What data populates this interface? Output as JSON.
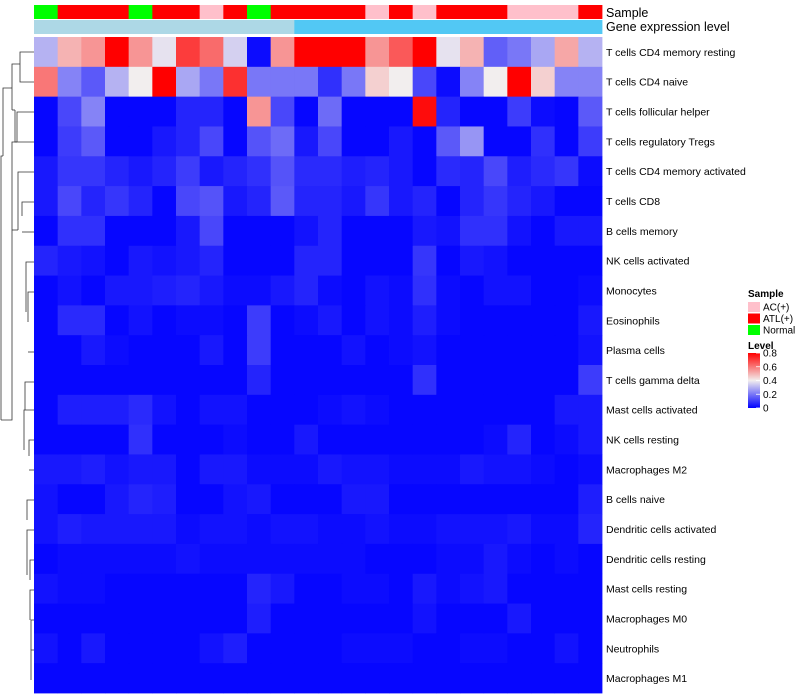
{
  "chart_data": {
    "type": "heatmap",
    "title": "",
    "annotation_tracks": [
      {
        "name": "Sample",
        "label": "Sample"
      },
      {
        "name": "Gene expression level",
        "label": "Gene expression level"
      }
    ],
    "sample_types": [
      "Normal",
      "ATL(+)",
      "ATL(+)",
      "ATL(+)",
      "Normal",
      "ATL(+)",
      "ATL(+)",
      "AC(+)",
      "ATL(+)",
      "Normal",
      "ATL(+)",
      "ATL(+)",
      "ATL(+)",
      "ATL(+)",
      "AC(+)",
      "ATL(+)",
      "AC(+)",
      "ATL(+)",
      "ATL(+)",
      "ATL(+)",
      "AC(+)",
      "AC(+)",
      "AC(+)",
      "ATL(+)"
    ],
    "expression_level": [
      "low",
      "low",
      "low",
      "low",
      "low",
      "low",
      "low",
      "low",
      "low",
      "low",
      "low",
      "high",
      "high",
      "high",
      "high",
      "high",
      "high",
      "high",
      "high",
      "high",
      "high",
      "high",
      "high",
      "high"
    ],
    "rows": [
      "T cells CD4 memory resting",
      "T cells CD4 naive",
      "T cells follicular helper",
      "T cells regulatory  Tregs",
      "T cells CD4 memory activated",
      "T cells CD8",
      "B cells memory",
      "NK cells activated",
      "Monocytes",
      "Eosinophils",
      "Plasma cells",
      "T cells gamma delta",
      "Mast cells activated",
      "NK cells resting",
      "Macrophages M2",
      "B cells naive",
      "Dendritic cells activated",
      "Dendritic cells resting",
      "Mast cells resting",
      "Macrophages M0",
      "Neutrophils",
      "Macrophages M1"
    ],
    "values": [
      [
        0.3,
        0.5,
        0.55,
        0.8,
        0.55,
        0.38,
        0.7,
        0.62,
        0.35,
        0.02,
        0.55,
        0.8,
        0.8,
        0.8,
        0.55,
        0.65,
        0.8,
        0.38,
        0.5,
        0.16,
        0.2,
        0.28,
        0.52,
        0.3
      ],
      [
        0.6,
        0.22,
        0.15,
        0.3,
        0.4,
        0.8,
        0.28,
        0.2,
        0.72,
        0.2,
        0.2,
        0.2,
        0.08,
        0.2,
        0.45,
        0.4,
        0.12,
        0.02,
        0.22,
        0.4,
        0.8,
        0.45,
        0.22,
        0.22
      ],
      [
        0.01,
        0.12,
        0.22,
        0.01,
        0.01,
        0.01,
        0.06,
        0.06,
        0.01,
        0.55,
        0.12,
        0.01,
        0.18,
        0.01,
        0.01,
        0.01,
        0.78,
        0.06,
        0.01,
        0.01,
        0.1,
        0.02,
        0.01,
        0.15
      ],
      [
        0.01,
        0.1,
        0.15,
        0.01,
        0.01,
        0.04,
        0.06,
        0.12,
        0.01,
        0.14,
        0.18,
        0.04,
        0.12,
        0.01,
        0.01,
        0.04,
        0.01,
        0.15,
        0.25,
        0.01,
        0.01,
        0.08,
        0.01,
        0.1
      ],
      [
        0.04,
        0.09,
        0.09,
        0.06,
        0.04,
        0.06,
        0.1,
        0.04,
        0.06,
        0.08,
        0.14,
        0.07,
        0.07,
        0.05,
        0.06,
        0.04,
        0.01,
        0.07,
        0.06,
        0.12,
        0.05,
        0.07,
        0.09,
        0.02
      ],
      [
        0.04,
        0.12,
        0.06,
        0.09,
        0.06,
        0.01,
        0.12,
        0.14,
        0.04,
        0.06,
        0.15,
        0.06,
        0.06,
        0.04,
        0.09,
        0.04,
        0.06,
        0.01,
        0.06,
        0.09,
        0.06,
        0.04,
        0.01,
        0.01
      ],
      [
        0.01,
        0.08,
        0.08,
        0.01,
        0.01,
        0.01,
        0.04,
        0.12,
        0.01,
        0.01,
        0.01,
        0.03,
        0.06,
        0.01,
        0.01,
        0.01,
        0.04,
        0.03,
        0.08,
        0.08,
        0.03,
        0.01,
        0.04,
        0.04
      ],
      [
        0.06,
        0.04,
        0.03,
        0.01,
        0.04,
        0.03,
        0.04,
        0.06,
        0.01,
        0.01,
        0.01,
        0.06,
        0.06,
        0.01,
        0.01,
        0.01,
        0.09,
        0.01,
        0.04,
        0.03,
        0.01,
        0.01,
        0.01,
        0.01
      ],
      [
        0.01,
        0.03,
        0.01,
        0.04,
        0.04,
        0.05,
        0.06,
        0.04,
        0.02,
        0.02,
        0.04,
        0.06,
        0.02,
        0.01,
        0.03,
        0.02,
        0.08,
        0.02,
        0.01,
        0.03,
        0.03,
        0.01,
        0.01,
        0.02
      ],
      [
        0.01,
        0.07,
        0.07,
        0.01,
        0.03,
        0.01,
        0.02,
        0.02,
        0.01,
        0.1,
        0.01,
        0.02,
        0.04,
        0.01,
        0.03,
        0.02,
        0.05,
        0.02,
        0.01,
        0.01,
        0.01,
        0.01,
        0.01,
        0.04
      ],
      [
        0.01,
        0.01,
        0.04,
        0.02,
        0.01,
        0.01,
        0.01,
        0.04,
        0.01,
        0.1,
        0.01,
        0.01,
        0.01,
        0.03,
        0.01,
        0.02,
        0.03,
        0.01,
        0.01,
        0.01,
        0.01,
        0.01,
        0.01,
        0.03
      ],
      [
        0.01,
        0.01,
        0.01,
        0.01,
        0.01,
        0.01,
        0.01,
        0.01,
        0.01,
        0.06,
        0.01,
        0.01,
        0.01,
        0.01,
        0.01,
        0.01,
        0.08,
        0.01,
        0.01,
        0.01,
        0.01,
        0.01,
        0.01,
        0.1
      ],
      [
        0.01,
        0.05,
        0.05,
        0.05,
        0.07,
        0.03,
        0.01,
        0.03,
        0.03,
        0.01,
        0.01,
        0.01,
        0.02,
        0.03,
        0.02,
        0.01,
        0.01,
        0.01,
        0.01,
        0.01,
        0.01,
        0.01,
        0.04,
        0.04
      ],
      [
        0.01,
        0.01,
        0.01,
        0.01,
        0.08,
        0.01,
        0.01,
        0.01,
        0.02,
        0.01,
        0.01,
        0.04,
        0.01,
        0.01,
        0.01,
        0.01,
        0.01,
        0.01,
        0.01,
        0.02,
        0.06,
        0.01,
        0.02,
        0.04
      ],
      [
        0.04,
        0.04,
        0.05,
        0.03,
        0.04,
        0.04,
        0.01,
        0.04,
        0.04,
        0.02,
        0.02,
        0.02,
        0.04,
        0.03,
        0.03,
        0.02,
        0.02,
        0.02,
        0.04,
        0.03,
        0.03,
        0.02,
        0.01,
        0.02
      ],
      [
        0.03,
        0.01,
        0.01,
        0.04,
        0.06,
        0.05,
        0.01,
        0.01,
        0.03,
        0.04,
        0.01,
        0.01,
        0.01,
        0.04,
        0.04,
        0.01,
        0.01,
        0.01,
        0.01,
        0.01,
        0.01,
        0.01,
        0.01,
        0.05
      ],
      [
        0.03,
        0.05,
        0.04,
        0.04,
        0.04,
        0.04,
        0.02,
        0.03,
        0.03,
        0.02,
        0.03,
        0.03,
        0.02,
        0.02,
        0.03,
        0.02,
        0.02,
        0.03,
        0.03,
        0.03,
        0.04,
        0.02,
        0.02,
        0.06
      ],
      [
        0.01,
        0.02,
        0.02,
        0.02,
        0.02,
        0.02,
        0.03,
        0.02,
        0.02,
        0.02,
        0.02,
        0.02,
        0.02,
        0.02,
        0.01,
        0.01,
        0.01,
        0.02,
        0.02,
        0.04,
        0.02,
        0.01,
        0.02,
        0.01
      ],
      [
        0.03,
        0.02,
        0.02,
        0.01,
        0.01,
        0.01,
        0.01,
        0.01,
        0.01,
        0.06,
        0.04,
        0.01,
        0.01,
        0.02,
        0.02,
        0.01,
        0.04,
        0.02,
        0.03,
        0.04,
        0.01,
        0.01,
        0.01,
        0.01
      ],
      [
        0.01,
        0.01,
        0.01,
        0.01,
        0.01,
        0.01,
        0.01,
        0.01,
        0.01,
        0.05,
        0.01,
        0.01,
        0.01,
        0.01,
        0.01,
        0.01,
        0.03,
        0.01,
        0.01,
        0.01,
        0.04,
        0.01,
        0.01,
        0.01
      ],
      [
        0.03,
        0.01,
        0.04,
        0.01,
        0.01,
        0.01,
        0.01,
        0.03,
        0.05,
        0.01,
        0.01,
        0.01,
        0.01,
        0.02,
        0.02,
        0.02,
        0.01,
        0.01,
        0.02,
        0.02,
        0.01,
        0.01,
        0.03,
        0.01
      ],
      [
        0.01,
        0.01,
        0.01,
        0.01,
        0.01,
        0.01,
        0.01,
        0.01,
        0.01,
        0.01,
        0.01,
        0.01,
        0.01,
        0.01,
        0.01,
        0.01,
        0.01,
        0.01,
        0.01,
        0.01,
        0.01,
        0.01,
        0.01,
        0.01
      ]
    ],
    "color_scale": {
      "min": 0,
      "max": 0.8,
      "low": "#0000ff",
      "mid": "#f2eeee",
      "mid_value": 0.4,
      "high": "#ff0000"
    },
    "legend": {
      "sample_title": "Sample",
      "sample_entries": [
        {
          "label": "AC(+)",
          "color": "#ffc0cb"
        },
        {
          "label": "ATL(+)",
          "color": "#ff0000"
        },
        {
          "label": "Normal",
          "color": "#00ff00"
        }
      ],
      "level_title": "Level",
      "level_ticks": [
        "0.8",
        "0.6",
        "0.4",
        "0.2",
        "0"
      ],
      "level_tick_values": [
        0.8,
        0.6,
        0.4,
        0.2,
        0
      ],
      "placement": "right"
    },
    "expression_colors": {
      "low": "#add8e6",
      "high": "#52c8f4"
    },
    "dendrogram": "row"
  }
}
